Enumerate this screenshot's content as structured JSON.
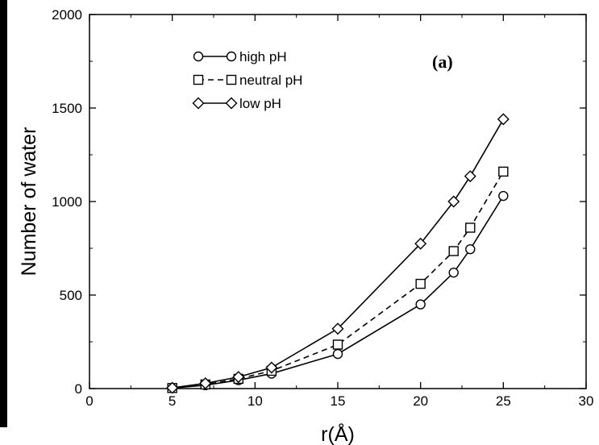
{
  "chart_data": {
    "type": "line",
    "panel_label": "(a)",
    "title": "",
    "xlabel": "r(Å)",
    "ylabel": "Number of water",
    "xlim": [
      0,
      30
    ],
    "ylim": [
      0,
      2000
    ],
    "x_ticks": [
      0,
      5,
      10,
      15,
      20,
      25,
      30
    ],
    "y_ticks": [
      0,
      500,
      1000,
      1500,
      2000
    ],
    "x_tick_labels": [
      "0",
      "5",
      "10",
      "15",
      "20",
      "25",
      "30"
    ],
    "y_tick_labels": [
      "0",
      "500",
      "1000",
      "1500",
      "2000"
    ],
    "grid": false,
    "legend_placement": "top-left",
    "x": [
      5,
      7,
      9,
      11,
      15,
      20,
      22,
      23,
      25
    ],
    "series": [
      {
        "name": "high pH",
        "marker": "circle",
        "line": "solid",
        "color": "#000000",
        "values": [
          3,
          18,
          45,
          80,
          185,
          450,
          620,
          745,
          1030
        ]
      },
      {
        "name": "neutral pH",
        "marker": "square",
        "line": "dashed",
        "color": "#000000",
        "values": [
          3,
          22,
          52,
          95,
          235,
          560,
          735,
          860,
          1160
        ]
      },
      {
        "name": "low pH",
        "marker": "diamond",
        "line": "solid",
        "color": "#000000",
        "values": [
          4,
          28,
          62,
          112,
          320,
          775,
          1000,
          1135,
          1440
        ]
      }
    ]
  }
}
